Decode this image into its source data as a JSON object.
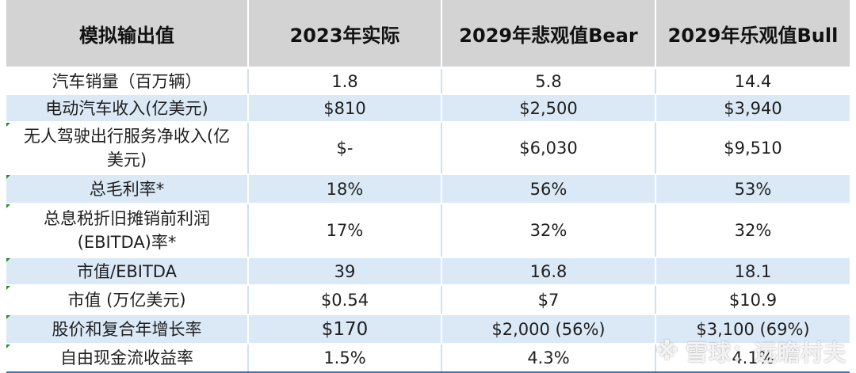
{
  "header": {
    "col0": "模拟输出值",
    "col1": "2023年实际",
    "col2": "2029年悲观值Bear",
    "col3": "2029年乐观值Bull"
  },
  "rows": [
    {
      "label": "汽车销量（百万辆）",
      "v2023": "1.8",
      "bear": "5.8",
      "bull": "14.4"
    },
    {
      "label": "电动汽车收入(亿美元)",
      "v2023": "$810",
      "bear": "$2,500",
      "bull": "$3,940"
    },
    {
      "label": "无人驾驶出行服务净收入(亿美元)",
      "v2023": "$-",
      "bear": "$6,030",
      "bull": "$9,510"
    },
    {
      "label": "总毛利率*",
      "v2023": "18%",
      "bear": "56%",
      "bull": "53%"
    },
    {
      "label": "总息税折旧摊销前利润(EBITDA)率*",
      "v2023": "17%",
      "bear": "32%",
      "bull": "32%"
    },
    {
      "label": "市值/EBITDA",
      "v2023": "39",
      "bear": "16.8",
      "bull": "18.1"
    },
    {
      "label": "市值 (万亿美元)",
      "v2023": "$0.54",
      "bear": "$7",
      "bull": "$10.9"
    },
    {
      "label": "股价和复合年增长率",
      "v2023": "$170",
      "bear": "$2,000 (56%)",
      "bull": "$3,100 (69%)"
    },
    {
      "label": "自由现金流收益率",
      "v2023": "1.5%",
      "bear": "4.3%",
      "bull": "4.1%"
    }
  ],
  "watermark": {
    "logo": "※",
    "text": "雪球：远瞻村夫",
    "icon_name": "xueqiu-snowball-icon"
  },
  "colors": {
    "header_bg": "#d3d3d3",
    "band_blue": "#dbe9f7",
    "band_white": "#ffffff",
    "marker_green": "#2e8b2e"
  }
}
